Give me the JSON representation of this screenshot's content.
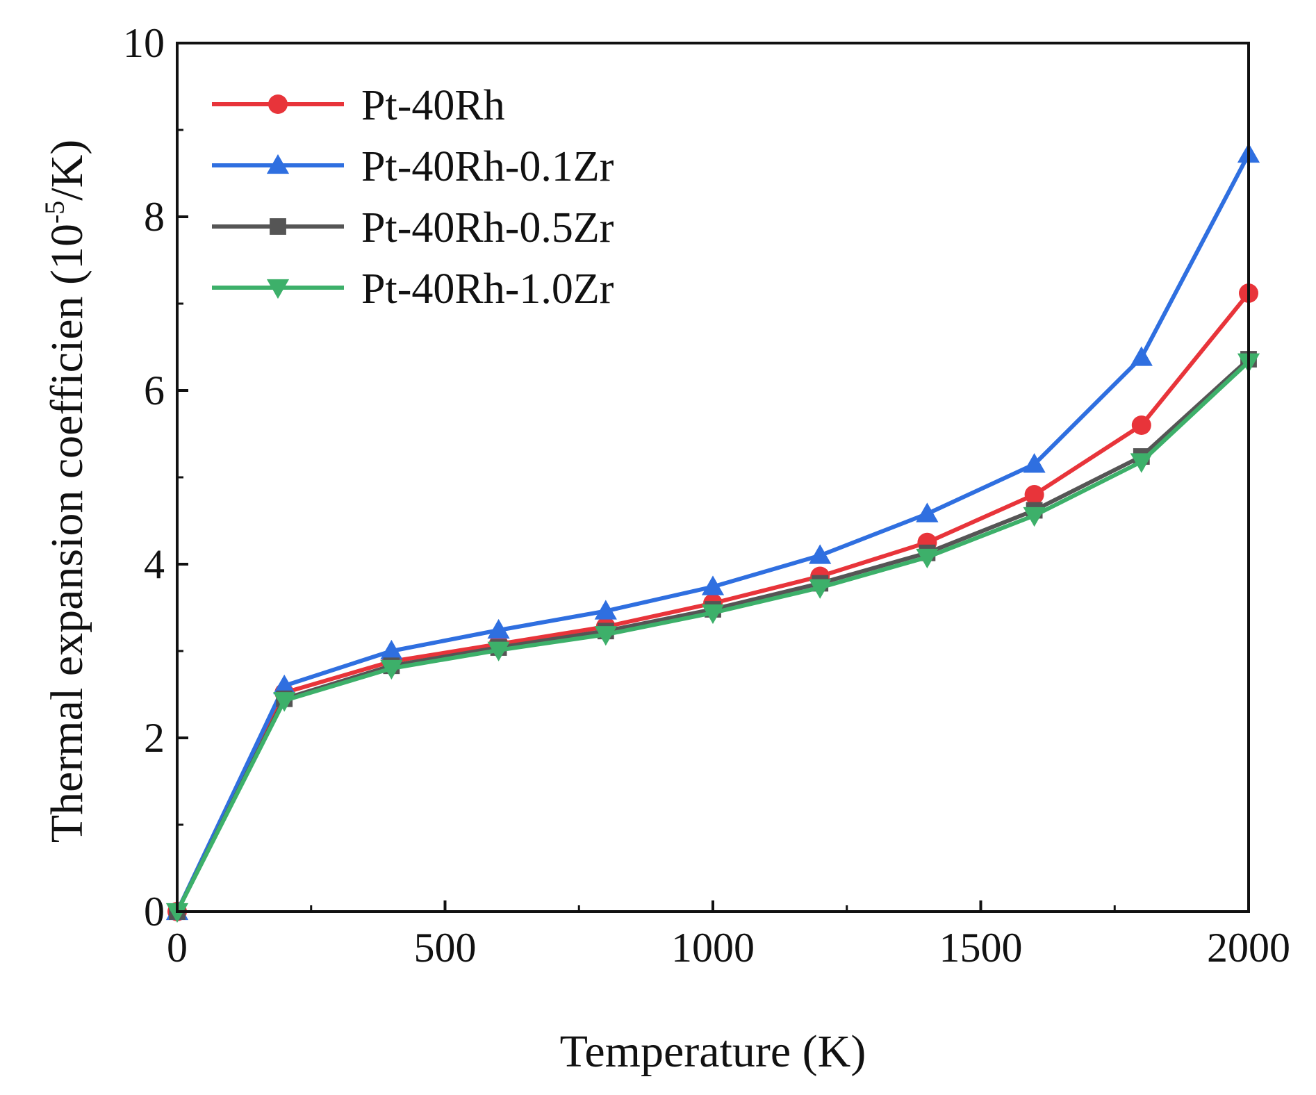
{
  "chart_data": {
    "type": "line",
    "title": "",
    "xlabel": "Temperature (K)",
    "ylabel": {
      "prefix": "Thermal expansion coefficien (10",
      "exponent": "-5",
      "suffix": "/K)"
    },
    "xlim": [
      0,
      2000
    ],
    "ylim": [
      0,
      10
    ],
    "xticks": [
      0,
      500,
      1000,
      1500,
      2000
    ],
    "yticks": [
      0,
      2,
      4,
      6,
      8,
      10
    ],
    "grid": false,
    "legend_position": "top-left",
    "x": [
      0,
      200,
      400,
      600,
      800,
      1000,
      1200,
      1400,
      1600,
      1800,
      2000
    ],
    "series": [
      {
        "name": "Pt-40Rh",
        "color": "#e8343a",
        "marker": "circle",
        "values": [
          0,
          2.52,
          2.88,
          3.08,
          3.28,
          3.55,
          3.86,
          4.25,
          4.8,
          5.6,
          7.12
        ]
      },
      {
        "name": "Pt-40Rh-0.1Zr",
        "color": "#2f6fe0",
        "marker": "triangle-up",
        "values": [
          0,
          2.6,
          3.0,
          3.24,
          3.46,
          3.74,
          4.1,
          4.58,
          5.15,
          6.38,
          8.72
        ]
      },
      {
        "name": "Pt-40Rh-0.5Zr",
        "color": "#555555",
        "marker": "square",
        "values": [
          0,
          2.45,
          2.83,
          3.04,
          3.23,
          3.48,
          3.78,
          4.13,
          4.62,
          5.24,
          6.36
        ]
      },
      {
        "name": "Pt-40Rh-1.0Zr",
        "color": "#3db06a",
        "marker": "triangle-down",
        "values": [
          0,
          2.43,
          2.8,
          3.01,
          3.19,
          3.44,
          3.73,
          4.08,
          4.56,
          5.18,
          6.33
        ]
      }
    ]
  }
}
